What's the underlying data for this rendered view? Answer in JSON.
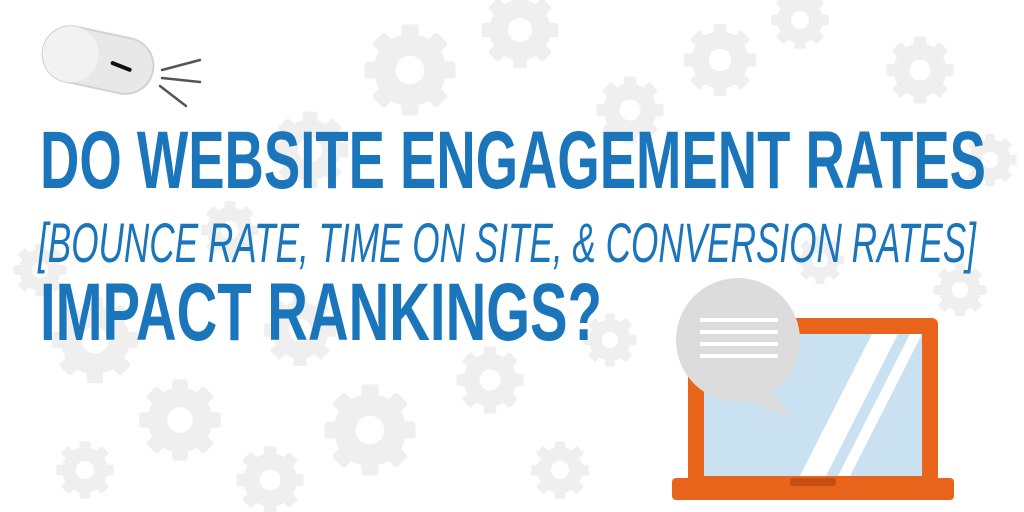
{
  "headline": {
    "line1": "DO WEBSITE ENGAGEMENT RATES",
    "line2": "[BOUNCE RATE, TIME ON SITE, & CONVERSION RATES]",
    "line3": "IMPACT RANKINGS?"
  }
}
